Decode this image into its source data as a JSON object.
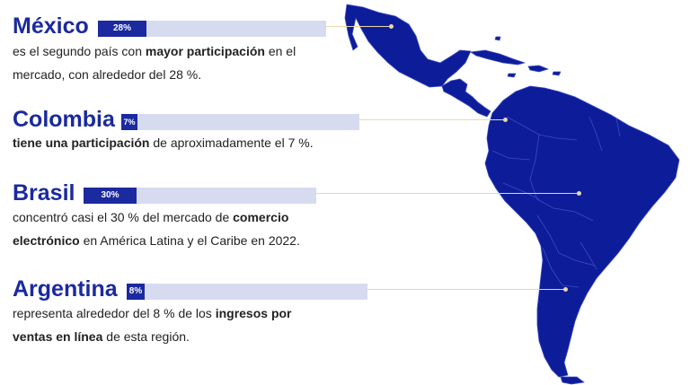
{
  "colors": {
    "primary": "#1b2a9f",
    "track": "#d7dbf0",
    "leader": "#e9d9a8"
  },
  "entries": [
    {
      "country": "México",
      "percent_label": "28%",
      "percent_value": 28,
      "desc": [
        "es el segundo país con ",
        "mayor participación",
        " en el",
        "mercado, con alrededor del 28 %."
      ]
    },
    {
      "country": "Colombia",
      "percent_label": "7%",
      "percent_value": 7,
      "desc": [
        "tiene una participación",
        " de aproximadamente el 7 %."
      ]
    },
    {
      "country": "Brasil",
      "percent_label": "30%",
      "percent_value": 30,
      "desc": [
        "concentró casi el 30 % del mercado de ",
        "comercio",
        "electrónico",
        " en América Latina y el Caribe en 2022."
      ]
    },
    {
      "country": "Argentina",
      "percent_label": "8%",
      "percent_value": 8,
      "desc": [
        "representa alrededor del 8 % de los ",
        "ingresos por",
        "ventas en línea",
        " de esta región."
      ]
    }
  ]
}
